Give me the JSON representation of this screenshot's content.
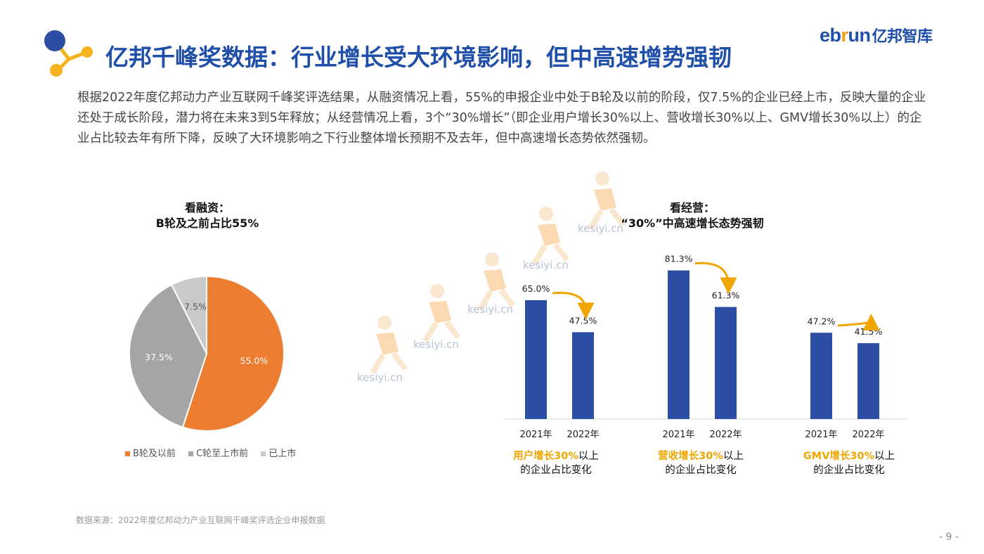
{
  "title": "亿邦千峰奖数据：行业增长受大环境影响，但中高速增势强韧",
  "brand": {
    "part1": "eb",
    "part2": "r",
    "part3": "un",
    "cn": "亿邦智库"
  },
  "intro": "根据2022年度亿邦动力产业互联网千峰奖评选结果，从融资情况上看，55%的申报企业中处于B轮及以前的阶段，仅7.5%的企业已经上市，反映大量的企业还处于成长阶段，潜力将在未来3到5年释放；从经营情况上看，3个“30%增长”（即企业用户增长30%以上、营收增长30%以上、GMV增长30%以上）的企业占比较去年有所下降，反映了大环境影响之下行业整体增长预期不及去年，但中高速增长态势依然强韧。",
  "watermark": "kesiyi.cn",
  "colors": {
    "title": "#1f4fa8",
    "pie_orange": "#ed7d31",
    "pie_gray": "#a5a5a5",
    "pie_light": "#c9c9c9",
    "bar": "#2b4da3",
    "arrow": "#f0a500",
    "highlight": "#f0a500"
  },
  "chart_data": [
    {
      "type": "pie",
      "title_line1": "看融资：",
      "title_line2": "B轮及之前占比55%",
      "slices": [
        {
          "label": "B轮及以前",
          "value": 55.0,
          "display": "55.0%",
          "color": "#ed7d31"
        },
        {
          "label": "C轮至上市前",
          "value": 37.5,
          "display": "37.5%",
          "color": "#a5a5a5"
        },
        {
          "label": "已上市",
          "value": 7.5,
          "display": "7.5%",
          "color": "#c9c9c9"
        }
      ]
    },
    {
      "type": "bar",
      "title_line1": "看经营：",
      "title_line2": "“30%”中高速增长态势强韧",
      "categories": [
        "2021年",
        "2022年"
      ],
      "ylim": [
        0,
        100
      ],
      "groups": [
        {
          "caption_hl": "用户增长30%",
          "caption_rest": "以上",
          "caption_line2": "的企业占比变化",
          "values": [
            65.0,
            47.5
          ],
          "labels": [
            "65.0%",
            "47.5%"
          ]
        },
        {
          "caption_hl": "营收增长30%",
          "caption_rest": "以上",
          "caption_line2": "的企业占比变化",
          "values": [
            81.3,
            61.3
          ],
          "labels": [
            "81.3%",
            "61.3%"
          ]
        },
        {
          "caption_hl": "GMV增长30%",
          "caption_rest": "以上",
          "caption_line2": "的企业占比变化",
          "values": [
            47.2,
            41.5
          ],
          "labels": [
            "47.2%",
            "41.5%"
          ]
        }
      ]
    }
  ],
  "source": "数据来源：2022年度亿邦动力产业互联网千峰奖评选企业申报数据",
  "page_number": "- 9 -"
}
